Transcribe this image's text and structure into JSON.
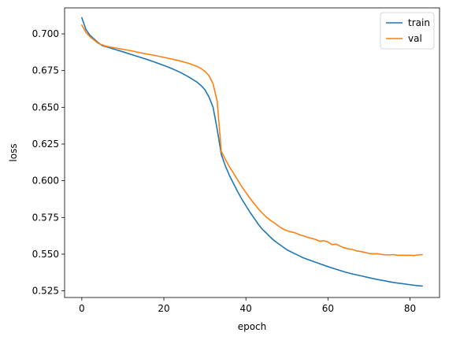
{
  "chart_data": {
    "type": "line",
    "title": "",
    "xlabel": "epoch",
    "ylabel": "loss",
    "xlim": [
      -4.2,
      87.2
    ],
    "ylim": [
      0.5205,
      0.7177
    ],
    "xticks": [
      0,
      20,
      40,
      60,
      80
    ],
    "yticks": [
      0.525,
      0.55,
      0.575,
      0.6,
      0.625,
      0.65,
      0.675,
      0.7
    ],
    "ytick_labels": [
      "0.525",
      "0.550",
      "0.575",
      "0.600",
      "0.625",
      "0.650",
      "0.675",
      "0.700"
    ],
    "grid": false,
    "legend": "top-right",
    "series": [
      {
        "name": "train",
        "color": "#1f77b4",
        "x": [
          0,
          1,
          2,
          3,
          4,
          5,
          6,
          8,
          10,
          12,
          14,
          16,
          18,
          20,
          22,
          24,
          26,
          28,
          29,
          30,
          31,
          32,
          33,
          34,
          35,
          36,
          37,
          38,
          39,
          40,
          41,
          42,
          43,
          44,
          45,
          46,
          47,
          48,
          50,
          52,
          54,
          56,
          58,
          60,
          62,
          64,
          66,
          68,
          70,
          72,
          74,
          76,
          78,
          80,
          82,
          83
        ],
        "y": [
          0.711,
          0.703,
          0.699,
          0.6965,
          0.694,
          0.692,
          0.6912,
          0.6895,
          0.6878,
          0.686,
          0.6843,
          0.6825,
          0.6805,
          0.6785,
          0.6763,
          0.6738,
          0.6708,
          0.6673,
          0.665,
          0.662,
          0.657,
          0.65,
          0.635,
          0.618,
          0.61,
          0.6035,
          0.598,
          0.5925,
          0.5875,
          0.583,
          0.5785,
          0.5745,
          0.5705,
          0.567,
          0.5643,
          0.5615,
          0.559,
          0.557,
          0.553,
          0.5502,
          0.5475,
          0.5455,
          0.5435,
          0.5415,
          0.5397,
          0.538,
          0.5365,
          0.5353,
          0.534,
          0.5328,
          0.5318,
          0.5307,
          0.53,
          0.5292,
          0.5285,
          0.5283
        ]
      },
      {
        "name": "val",
        "color": "#ff7f0e",
        "x": [
          0,
          1,
          2,
          3,
          4,
          5,
          6,
          8,
          10,
          12,
          14,
          16,
          18,
          20,
          22,
          24,
          26,
          28,
          29,
          30,
          31,
          32,
          33,
          34,
          35,
          36,
          37,
          38,
          39,
          40,
          41,
          42,
          43,
          44,
          45,
          46,
          47,
          48,
          49,
          50,
          51,
          52,
          53,
          54,
          55,
          56,
          57,
          58,
          59,
          60,
          61,
          62,
          63,
          64,
          65,
          66,
          67,
          68,
          69,
          70,
          71,
          72,
          73,
          74,
          75,
          76,
          77,
          78,
          79,
          80,
          81,
          82,
          83
        ],
        "y": [
          0.706,
          0.701,
          0.698,
          0.6958,
          0.6935,
          0.6925,
          0.6915,
          0.6905,
          0.6895,
          0.6885,
          0.6873,
          0.6862,
          0.6852,
          0.684,
          0.6828,
          0.6815,
          0.68,
          0.678,
          0.6765,
          0.6745,
          0.6715,
          0.666,
          0.654,
          0.62,
          0.6145,
          0.6095,
          0.605,
          0.6005,
          0.596,
          0.592,
          0.588,
          0.5845,
          0.581,
          0.578,
          0.5752,
          0.573,
          0.5712,
          0.569,
          0.5672,
          0.566,
          0.5652,
          0.5645,
          0.5633,
          0.5625,
          0.5615,
          0.5608,
          0.56,
          0.5588,
          0.5592,
          0.5583,
          0.5565,
          0.5568,
          0.5555,
          0.5543,
          0.5536,
          0.5532,
          0.5522,
          0.5518,
          0.5512,
          0.5505,
          0.5503,
          0.5503,
          0.5498,
          0.5495,
          0.5495,
          0.5497,
          0.5492,
          0.5493,
          0.5492,
          0.5493,
          0.5491,
          0.5495,
          0.5497
        ]
      }
    ]
  }
}
